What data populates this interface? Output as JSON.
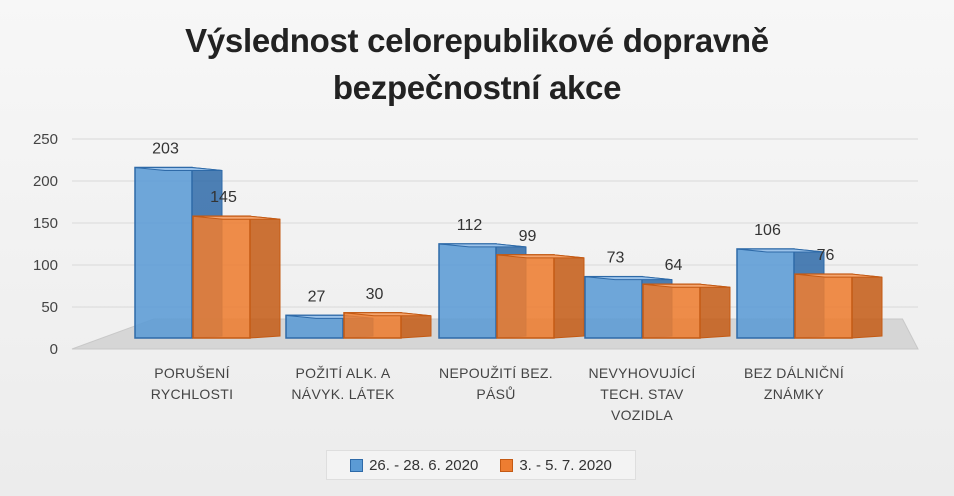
{
  "colors": {
    "series1_fill": "#5b9bd5",
    "series1_dark": "#2e6aa8",
    "series1_top": "#9cc3ea",
    "series2_fill": "#ed7d31",
    "series2_dark": "#c45a14",
    "series2_top": "#f5a56e",
    "floor": "#d6d6d6",
    "grid": "#d9d9d9"
  },
  "chart_data": {
    "type": "bar",
    "title_line1": "Výslednost celorepublikové dopravně",
    "title_line2": "bezpečnostní akce",
    "categories": [
      [
        "PORUŠENÍ",
        "RYCHLOSTI"
      ],
      [
        "POŽITÍ ALK. A",
        "NÁVYK. LÁTEK"
      ],
      [
        "NEPOUŽITÍ BEZ.",
        "PÁSŮ"
      ],
      [
        "NEVYHOVUJÍCÍ",
        "TECH. STAV",
        "VOZIDLA"
      ],
      [
        "BEZ DÁLNIČNÍ",
        "ZNÁMKY"
      ]
    ],
    "series": [
      {
        "name": "26. - 28. 6. 2020",
        "values": [
          203,
          27,
          112,
          73,
          106
        ]
      },
      {
        "name": "3. - 5. 7. 2020",
        "values": [
          145,
          30,
          99,
          64,
          76
        ]
      }
    ],
    "ylim": [
      0,
      250
    ],
    "yticks": [
      0,
      50,
      100,
      150,
      200,
      250
    ],
    "grid": true,
    "legend_position": "bottom"
  }
}
